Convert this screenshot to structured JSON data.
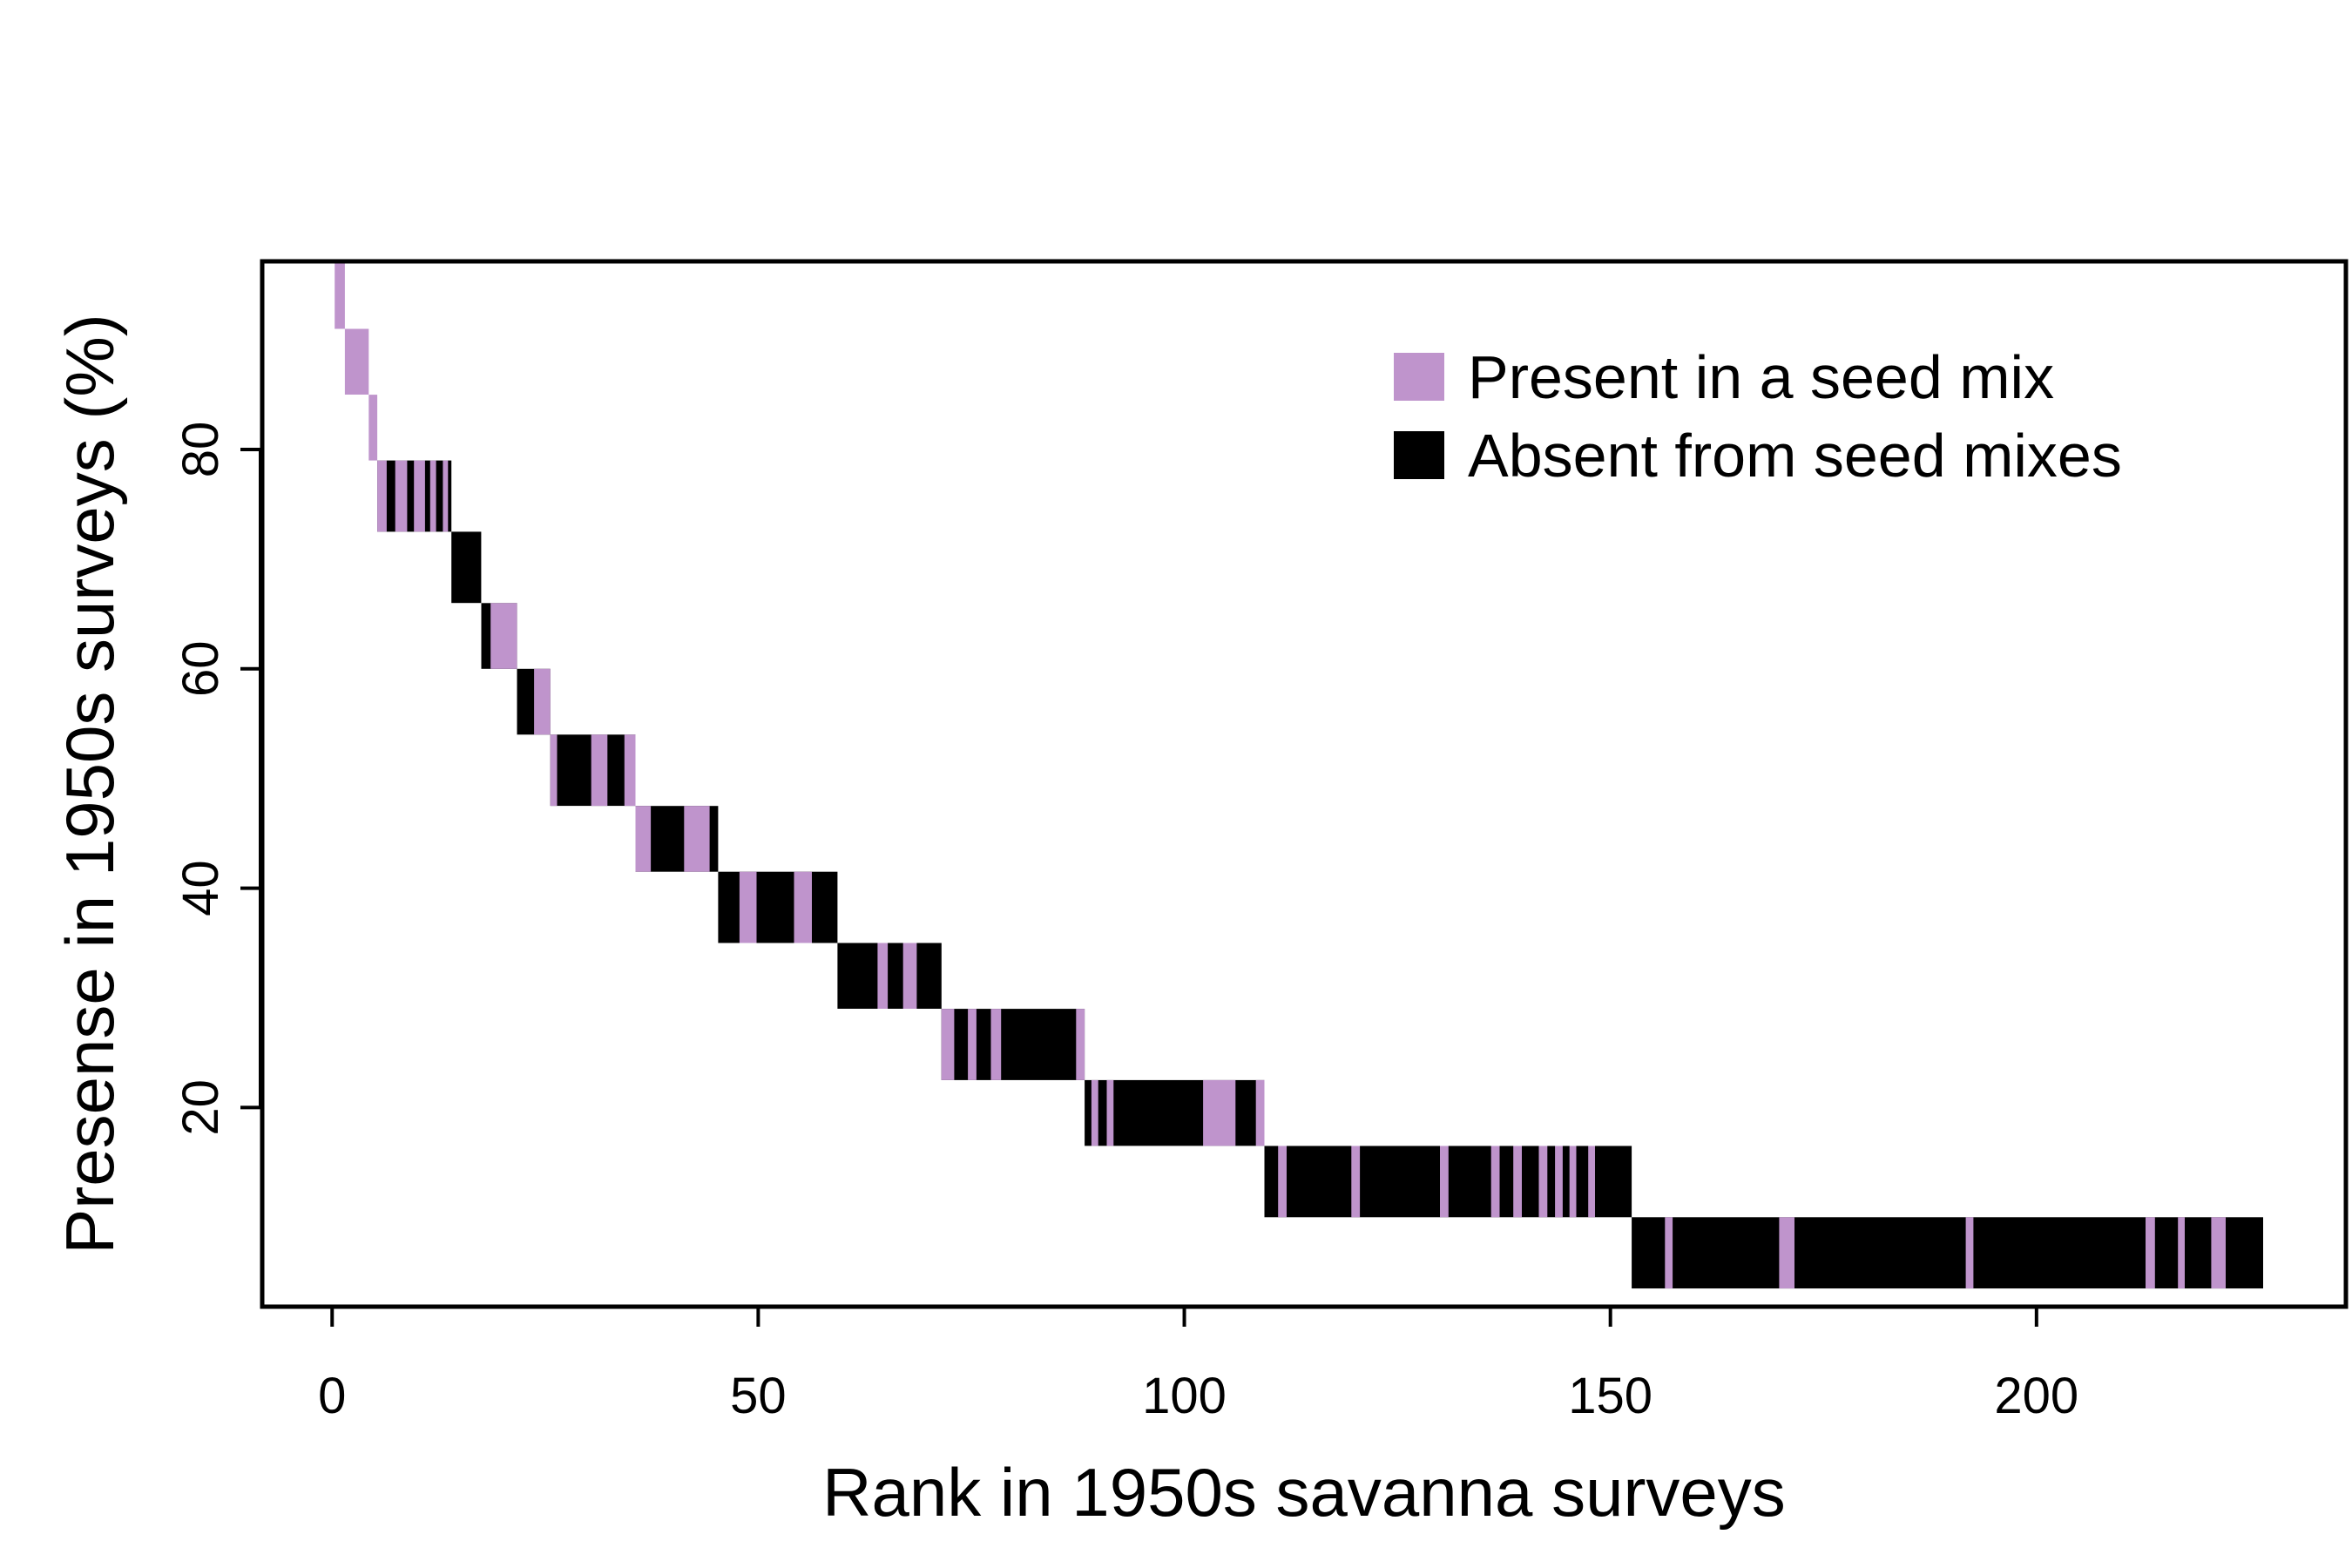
{
  "chart_data": {
    "type": "bar",
    "xlabel": "Rank in 1950s savanna surveys",
    "ylabel": "Presense in 1950s surveys (%)",
    "xlim": [
      -8,
      236
    ],
    "ylim": [
      2,
      97
    ],
    "xticks": [
      0,
      50,
      100,
      150,
      200
    ],
    "yticks": [
      20,
      40,
      60,
      80
    ],
    "grid": false,
    "legend_position": "top-right",
    "colors": {
      "present": "#bf94cc",
      "absent": "#000000",
      "axis": "#000000"
    },
    "series": [
      {
        "key": "present",
        "name": "Present in a seed mix"
      },
      {
        "key": "absent",
        "name": "Absent from seed mixes"
      }
    ],
    "levels": [
      {
        "x_start": 0.3,
        "x_end": 1.5,
        "y": 97.0,
        "bar_bottom": 91.0,
        "present": [
          [
            0.3,
            1.5
          ]
        ]
      },
      {
        "x_start": 1.5,
        "x_end": 4.3,
        "y": 91.0,
        "bar_bottom": 85.0,
        "present": [
          [
            1.5,
            4.3
          ]
        ]
      },
      {
        "x_start": 4.3,
        "x_end": 5.3,
        "y": 85.0,
        "bar_bottom": 79.0,
        "present": [
          [
            4.3,
            5.3
          ]
        ]
      },
      {
        "x_start": 5.3,
        "x_end": 14.0,
        "y": 79.0,
        "bar_bottom": 72.5,
        "present": [
          [
            5.3,
            6.4
          ],
          [
            7.4,
            8.8
          ],
          [
            9.6,
            10.9
          ],
          [
            11.5,
            12.2
          ],
          [
            13.0,
            13.6
          ]
        ]
      },
      {
        "x_start": 14.0,
        "x_end": 17.5,
        "y": 72.5,
        "bar_bottom": 66.0,
        "present": []
      },
      {
        "x_start": 17.5,
        "x_end": 21.7,
        "y": 66.0,
        "bar_bottom": 60.0,
        "present": [
          [
            18.6,
            21.7
          ]
        ]
      },
      {
        "x_start": 21.7,
        "x_end": 25.6,
        "y": 60.0,
        "bar_bottom": 54.0,
        "present": [
          [
            23.7,
            25.6
          ]
        ]
      },
      {
        "x_start": 25.6,
        "x_end": 35.6,
        "y": 54.0,
        "bar_bottom": 47.5,
        "present": [
          [
            25.6,
            26.4
          ],
          [
            30.4,
            32.3
          ],
          [
            34.3,
            35.6
          ]
        ]
      },
      {
        "x_start": 35.6,
        "x_end": 45.3,
        "y": 47.5,
        "bar_bottom": 41.5,
        "present": [
          [
            35.6,
            37.4
          ],
          [
            41.3,
            44.3
          ]
        ]
      },
      {
        "x_start": 45.3,
        "x_end": 59.3,
        "y": 41.5,
        "bar_bottom": 35.0,
        "present": [
          [
            47.8,
            49.8
          ],
          [
            54.2,
            56.3
          ]
        ]
      },
      {
        "x_start": 59.3,
        "x_end": 71.5,
        "y": 35.0,
        "bar_bottom": 29.0,
        "present": [
          [
            64.0,
            65.2
          ],
          [
            67.0,
            68.6
          ]
        ]
      },
      {
        "x_start": 71.5,
        "x_end": 88.3,
        "y": 29.0,
        "bar_bottom": 22.5,
        "present": [
          [
            71.5,
            73.0
          ],
          [
            74.6,
            75.6
          ],
          [
            77.3,
            78.5
          ],
          [
            87.3,
            88.3
          ]
        ]
      },
      {
        "x_start": 88.3,
        "x_end": 109.4,
        "y": 22.5,
        "bar_bottom": 16.5,
        "present": [
          [
            89.1,
            89.9
          ],
          [
            90.9,
            91.7
          ],
          [
            102.2,
            106.0
          ],
          [
            108.4,
            109.4
          ]
        ]
      },
      {
        "x_start": 109.4,
        "x_end": 152.5,
        "y": 16.5,
        "bar_bottom": 10.0,
        "present": [
          [
            111.0,
            112.0
          ],
          [
            119.6,
            120.6
          ],
          [
            130.0,
            131.0
          ],
          [
            136.0,
            137.0
          ],
          [
            138.6,
            139.6
          ],
          [
            141.6,
            142.6
          ],
          [
            143.5,
            144.4
          ],
          [
            145.2,
            146.0
          ],
          [
            147.4,
            148.2
          ]
        ]
      },
      {
        "x_start": 152.5,
        "x_end": 226.6,
        "y": 10.0,
        "bar_bottom": 3.5,
        "present": [
          [
            156.4,
            157.3
          ],
          [
            169.8,
            171.6
          ],
          [
            191.7,
            192.6
          ],
          [
            212.8,
            213.9
          ],
          [
            216.6,
            217.4
          ],
          [
            220.5,
            222.2
          ]
        ]
      }
    ]
  }
}
